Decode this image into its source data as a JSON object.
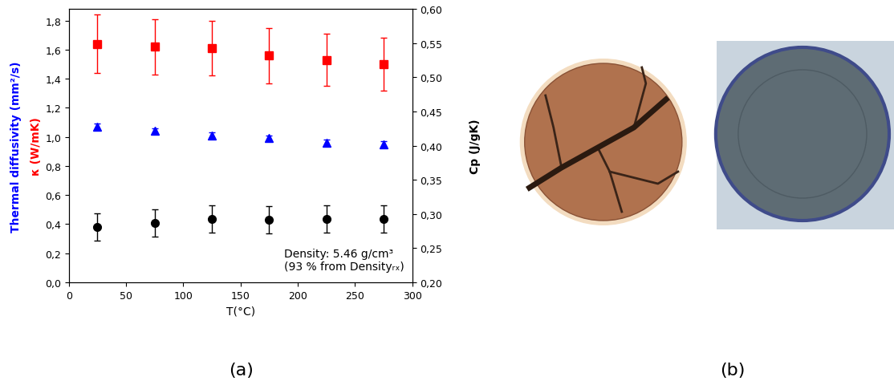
{
  "chart_data": {
    "type": "scatter",
    "xlabel": "T(°C)",
    "x": [
      25,
      75,
      125,
      175,
      225,
      275
    ],
    "xlim": [
      0,
      300
    ],
    "xticks": [
      0,
      50,
      100,
      150,
      200,
      250,
      300
    ],
    "ylim": [
      0,
      1.88
    ],
    "yticks": [
      {
        "value": 0.0,
        "label": "0,0"
      },
      {
        "value": 0.2,
        "label": "0,2"
      },
      {
        "value": 0.4,
        "label": "0,4"
      },
      {
        "value": 0.6,
        "label": "0,6"
      },
      {
        "value": 0.8,
        "label": "0,8"
      },
      {
        "value": 1.0,
        "label": "1,0"
      },
      {
        "value": 1.2,
        "label": "1,2"
      },
      {
        "value": 1.4,
        "label": "1,4"
      },
      {
        "value": 1.6,
        "label": "1,6"
      },
      {
        "value": 1.8,
        "label": "1,8"
      }
    ],
    "y2lim": [
      0.2,
      0.6
    ],
    "y2ticks": [
      {
        "value": 0.2,
        "label": "0,20"
      },
      {
        "value": 0.25,
        "label": "0,25"
      },
      {
        "value": 0.3,
        "label": "0,30"
      },
      {
        "value": 0.35,
        "label": "0,35"
      },
      {
        "value": 0.4,
        "label": "0,40"
      },
      {
        "value": 0.45,
        "label": "0,45"
      },
      {
        "value": 0.5,
        "label": "0,50"
      },
      {
        "value": 0.55,
        "label": "0,55"
      },
      {
        "value": 0.6,
        "label": "0,60"
      }
    ],
    "series": [
      {
        "name": "Thermal diffusivity (mm²/s)",
        "color": "#0000ff",
        "marker": "triangle",
        "line_style": "none",
        "axis": "y",
        "values": [
          1.07,
          1.04,
          1.01,
          0.99,
          0.96,
          0.95
        ],
        "errors": [
          0.02,
          0.02,
          0.02,
          0.02,
          0.02,
          0.02
        ]
      },
      {
        "name": "κ (W/mK)",
        "color": "#ff0000",
        "marker": "square",
        "line_style": "none",
        "axis": "y",
        "values": [
          1.64,
          1.62,
          1.61,
          1.56,
          1.53,
          1.5
        ],
        "errors": [
          0.2,
          0.19,
          0.19,
          0.19,
          0.18,
          0.18
        ]
      },
      {
        "name": "Cp (J/gK)",
        "color": "#000000",
        "marker": "circle",
        "line_style": "none",
        "axis": "y2",
        "values": [
          0.281,
          0.287,
          0.293,
          0.292,
          0.293,
          0.293
        ],
        "errors": [
          0.02,
          0.02,
          0.02,
          0.02,
          0.02,
          0.02
        ]
      }
    ],
    "annotation": "Density: 5.46 g/cm³\n(93 % from Densityᵣₓ)",
    "panel_labels": [
      "(a)",
      "(b)"
    ]
  }
}
